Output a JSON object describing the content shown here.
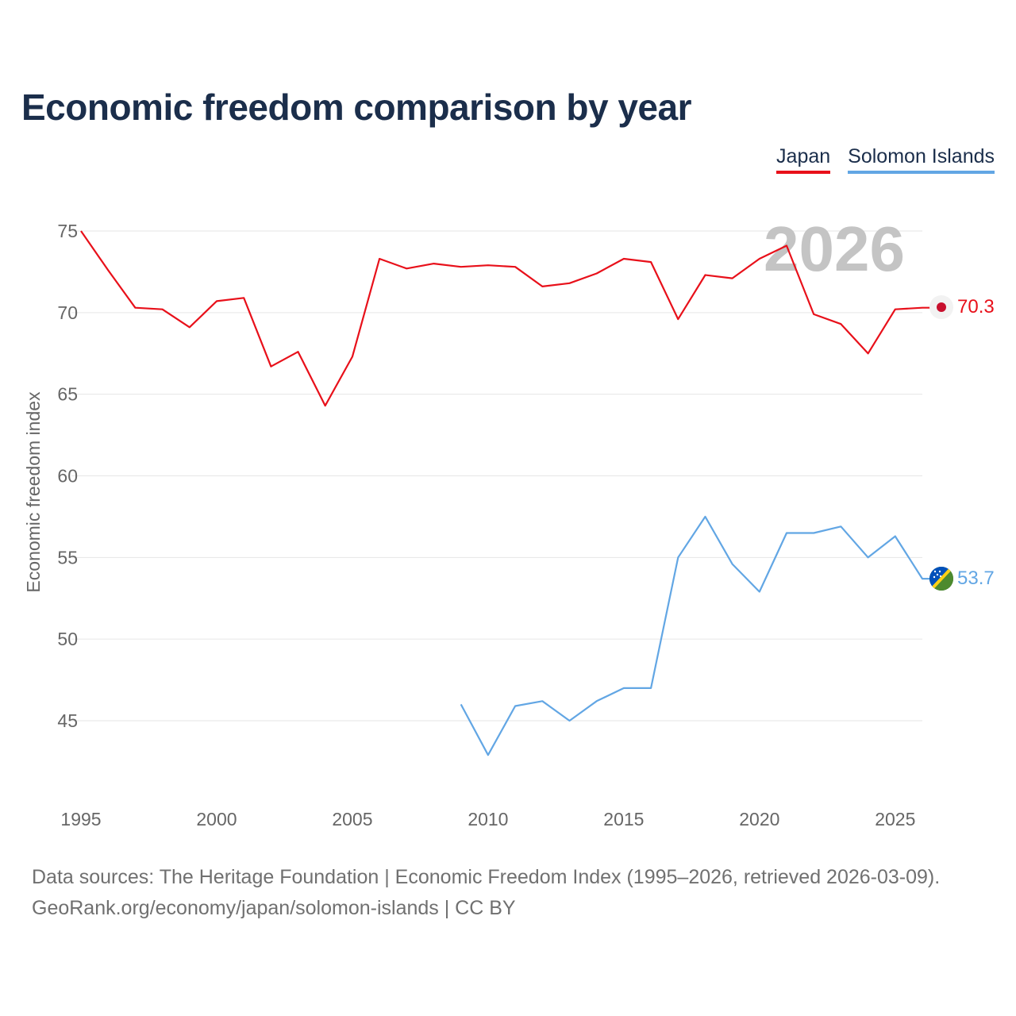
{
  "title": "Economic freedom comparison by year",
  "legend": {
    "japan": "Japan",
    "solomon": "Solomon Islands"
  },
  "year_watermark": "2026",
  "footer": {
    "sources": "Data sources: The Heritage Foundation | Economic Freedom Index (1995–2026, retrieved 2026-03-09).",
    "link": "GeoRank.org/economy/japan/solomon-islands",
    "license": " | CC BY"
  },
  "colors": {
    "japan": "#e8101a",
    "solomon": "#62a6e4",
    "grid": "#e6e6e6",
    "axis_text": "#666666",
    "watermark": "#c4c4c4"
  },
  "chart_data": {
    "type": "line",
    "title": "Economic freedom comparison by year",
    "xlabel": "",
    "ylabel": "Economic freedom index",
    "xlim": [
      1995,
      2026
    ],
    "ylim": [
      41,
      77
    ],
    "x_ticks": [
      1995,
      2000,
      2005,
      2010,
      2015,
      2020,
      2025
    ],
    "y_ticks": [
      45,
      50,
      55,
      60,
      65,
      70,
      75
    ],
    "grid": true,
    "series": [
      {
        "name": "Japan",
        "color": "#e8101a",
        "x": [
          1995,
          1996,
          1997,
          1998,
          1999,
          2000,
          2001,
          2002,
          2003,
          2004,
          2005,
          2006,
          2007,
          2008,
          2009,
          2010,
          2011,
          2012,
          2013,
          2014,
          2015,
          2016,
          2017,
          2018,
          2019,
          2020,
          2021,
          2022,
          2023,
          2024,
          2025,
          2026
        ],
        "y": [
          75.0,
          72.6,
          70.3,
          70.2,
          69.1,
          70.7,
          70.9,
          66.7,
          67.6,
          64.3,
          67.3,
          73.3,
          72.7,
          73.0,
          72.8,
          72.9,
          72.8,
          71.6,
          71.8,
          72.4,
          73.3,
          73.1,
          69.6,
          72.3,
          72.1,
          73.3,
          74.1,
          69.9,
          69.3,
          67.5,
          70.2,
          70.3
        ],
        "last_label": "70.3"
      },
      {
        "name": "Solomon Islands",
        "color": "#62a6e4",
        "x": [
          2009,
          2010,
          2011,
          2012,
          2013,
          2014,
          2015,
          2016,
          2017,
          2018,
          2019,
          2020,
          2021,
          2022,
          2023,
          2024,
          2025,
          2026
        ],
        "y": [
          46.0,
          42.9,
          45.9,
          46.2,
          45.0,
          46.2,
          47.0,
          47.0,
          55.0,
          57.5,
          54.6,
          52.9,
          56.5,
          56.5,
          56.9,
          55.0,
          56.3,
          53.7
        ],
        "last_label": "53.7"
      }
    ]
  }
}
